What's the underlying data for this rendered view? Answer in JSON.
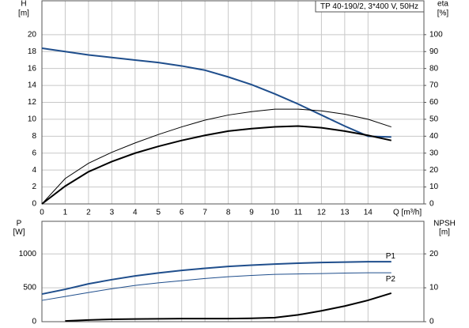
{
  "chart_data": [
    {
      "type": "line",
      "title": "TP 40-190/2, 3*400 V, 50Hz",
      "ylabel": "H",
      "yunit": "[m]",
      "y2label": "eta",
      "y2unit": "[%]",
      "xlabel": "Q [m³/h]",
      "x": [
        0,
        1,
        2,
        3,
        4,
        5,
        6,
        7,
        8,
        9,
        10,
        11,
        12,
        13,
        14,
        15
      ],
      "xlim": [
        0,
        16.4
      ],
      "xticks": [
        0,
        1,
        2,
        3,
        4,
        5,
        6,
        7,
        8,
        9,
        10,
        11,
        12,
        13,
        14
      ],
      "xtick_labels": true,
      "ylim": [
        0,
        24
      ],
      "yticks": [
        0,
        2,
        4,
        6,
        8,
        10,
        12,
        14,
        16,
        18,
        20
      ],
      "y2lim": [
        0,
        120
      ],
      "y2ticks": [
        0,
        10,
        20,
        30,
        40,
        50,
        60,
        70,
        80,
        90,
        100
      ],
      "grid": true,
      "series": [
        {
          "color": "#1f4e8c",
          "line_width": 2,
          "values": [
            18.4,
            18.0,
            17.6,
            17.3,
            17.0,
            16.7,
            16.3,
            15.8,
            15.0,
            14.1,
            13.0,
            11.8,
            10.5,
            9.2,
            8.0,
            7.9
          ]
        },
        {
          "color": "#000000",
          "line_width": 1,
          "axis": "y2",
          "values": [
            0,
            15,
            24,
            30.5,
            36,
            41,
            45.5,
            49.5,
            52.5,
            54.5,
            56,
            56,
            55,
            53,
            50,
            45.5
          ]
        },
        {
          "color": "#000000",
          "line_width": 2,
          "axis": "y2",
          "values": [
            0,
            10.5,
            19,
            25,
            30,
            34,
            37.5,
            40.5,
            43,
            44.5,
            45.5,
            46,
            45,
            43,
            40.5,
            37.5
          ]
        }
      ]
    },
    {
      "type": "line",
      "ylabel": "P",
      "yunit": "[W]",
      "y2label": "NPSH",
      "y2unit": "[m]",
      "x": [
        0,
        1,
        2,
        3,
        4,
        5,
        6,
        7,
        8,
        9,
        10,
        11,
        12,
        13,
        14,
        15
      ],
      "xlim": [
        0,
        16.4
      ],
      "xticks": [
        0,
        1,
        2,
        3,
        4,
        5,
        6,
        7,
        8,
        9,
        10,
        11,
        12,
        13,
        14
      ],
      "xtick_labels": false,
      "ylim": [
        0,
        1480
      ],
      "yticks": [
        0,
        500,
        1000
      ],
      "y2lim": [
        0,
        29.6
      ],
      "y2ticks": [
        0,
        10,
        20
      ],
      "grid": true,
      "series": [
        {
          "name": "P1",
          "color": "#1f4e8c",
          "line_width": 2,
          "values": [
            407,
            477,
            558,
            620,
            674,
            718,
            756,
            787,
            814,
            833,
            849,
            862,
            872,
            879,
            884,
            884
          ]
        },
        {
          "name": "P2",
          "color": "#1f4e8c",
          "line_width": 1,
          "values": [
            314,
            372,
            430,
            485,
            535,
            572,
            605,
            637,
            663,
            682,
            698,
            704,
            709,
            716,
            721,
            721
          ]
        },
        {
          "color": "#000000",
          "line_width": 2,
          "axis": "y2",
          "values": [
            null,
            0.2,
            0.5,
            0.7,
            0.8,
            0.85,
            0.9,
            0.9,
            0.9,
            1.0,
            1.2,
            2.0,
            3.2,
            4.6,
            6.3,
            8.4
          ]
        }
      ]
    }
  ]
}
